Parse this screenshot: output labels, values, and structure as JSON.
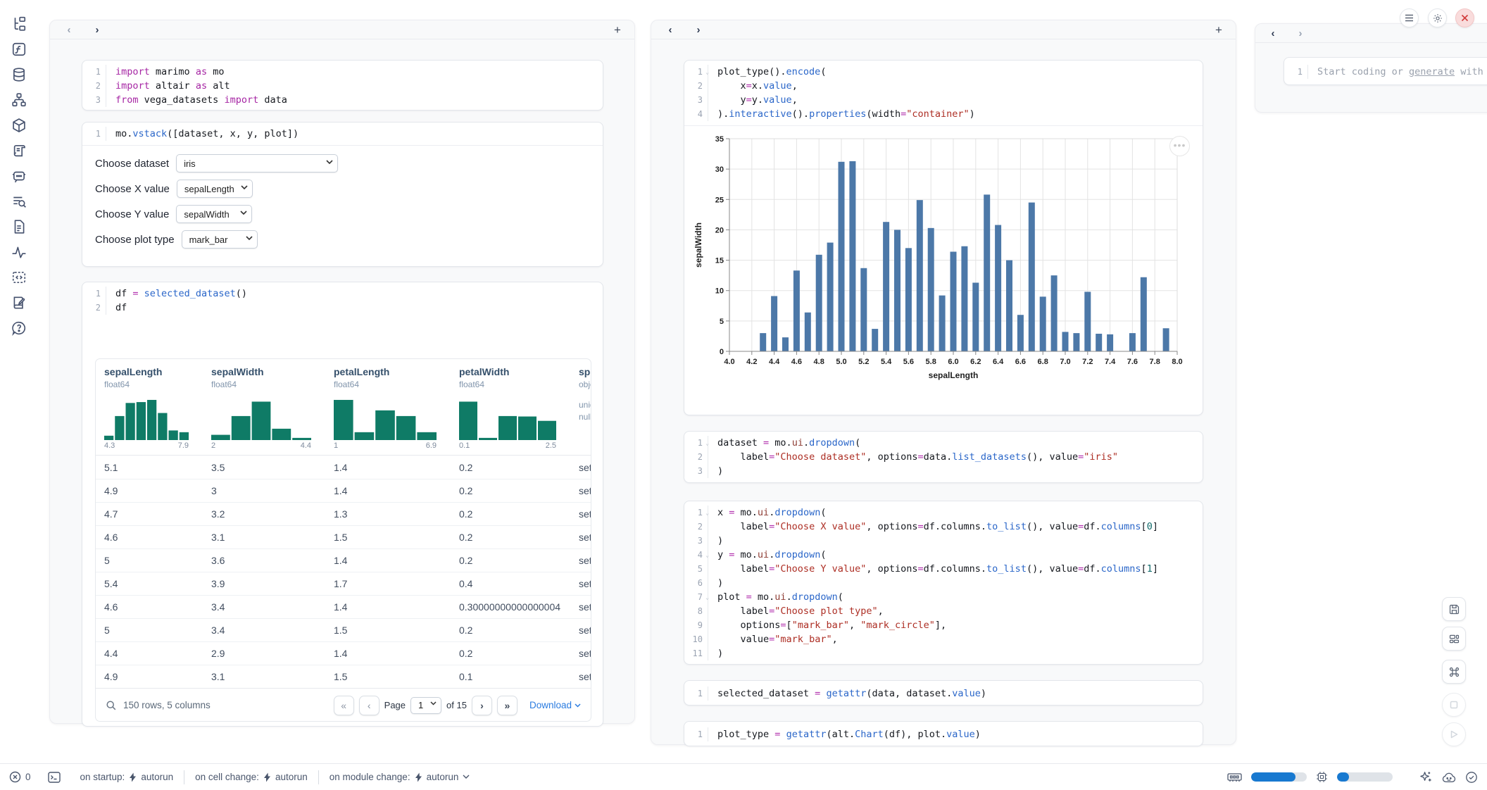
{
  "sidebar": {
    "icons": [
      "file-explorer-icon",
      "functions-icon",
      "datasets-icon",
      "dependency-graph-icon",
      "packages-icon",
      "logs-icon",
      "ai-chat-icon",
      "scratchpad-icon",
      "snippets-icon",
      "tracing-icon",
      "code-outline-icon",
      "documentation-icon",
      "help-icon"
    ]
  },
  "left_column": {
    "cells": {
      "imports": {
        "lines": [
          {
            "n": "1",
            "t": [
              [
                "k",
                "import"
              ],
              [
                "p",
                " marimo "
              ],
              [
                "k",
                "as"
              ],
              [
                "p",
                " mo"
              ]
            ]
          },
          {
            "n": "2",
            "t": [
              [
                "k",
                "import"
              ],
              [
                "p",
                " altair "
              ],
              [
                "k",
                "as"
              ],
              [
                "p",
                " alt"
              ]
            ]
          },
          {
            "n": "3",
            "t": [
              [
                "k",
                "from"
              ],
              [
                "p",
                " vega_datasets "
              ],
              [
                "k",
                "import"
              ],
              [
                "p",
                " data"
              ]
            ]
          }
        ]
      },
      "vstack": {
        "lines": [
          {
            "n": "1",
            "t": [
              [
                "p",
                "mo."
              ],
              [
                "f",
                "vstack"
              ],
              [
                "p",
                "([dataset, x, y, plot])"
              ]
            ]
          }
        ]
      },
      "df": {
        "lines": [
          {
            "n": "1",
            "t": [
              [
                "p",
                "df "
              ],
              [
                "o",
                "="
              ],
              [
                "p",
                " "
              ],
              [
                "f",
                "selected_dataset"
              ],
              [
                "p",
                "()"
              ]
            ]
          },
          {
            "n": "2",
            "t": [
              [
                "p",
                "df"
              ]
            ]
          }
        ]
      }
    },
    "controls": [
      {
        "label": "Choose dataset",
        "value": "iris"
      },
      {
        "label": "Choose X value",
        "value": "sepalLength"
      },
      {
        "label": "Choose Y value",
        "value": "sepalWidth"
      },
      {
        "label": "Choose plot type",
        "value": "mark_bar"
      }
    ]
  },
  "table": {
    "columns": [
      {
        "name": "sepalLength",
        "dtype": "float64",
        "min": "4.3",
        "max": "7.9",
        "hist": [
          0.1,
          0.55,
          0.85,
          0.87,
          0.92,
          0.62,
          0.22,
          0.18
        ]
      },
      {
        "name": "sepalWidth",
        "dtype": "float64",
        "min": "2",
        "max": "4.4",
        "hist": [
          0.12,
          0.55,
          0.88,
          0.26,
          0.05
        ]
      },
      {
        "name": "petalLength",
        "dtype": "float64",
        "min": "1",
        "max": "6.9",
        "hist": [
          0.92,
          0.18,
          0.68,
          0.55,
          0.18
        ]
      },
      {
        "name": "petalWidth",
        "dtype": "float64",
        "min": "0.1",
        "max": "2.5",
        "hist": [
          0.88,
          0.05,
          0.55,
          0.54,
          0.44
        ]
      },
      {
        "name": "speci",
        "dtype": "objec",
        "extra": [
          "uniqu",
          "nulls:"
        ]
      }
    ],
    "rows": [
      [
        "5.1",
        "3.5",
        "1.4",
        "0.2",
        "setos"
      ],
      [
        "4.9",
        "3",
        "1.4",
        "0.2",
        "setos"
      ],
      [
        "4.7",
        "3.2",
        "1.3",
        "0.2",
        "setos"
      ],
      [
        "4.6",
        "3.1",
        "1.5",
        "0.2",
        "setos"
      ],
      [
        "5",
        "3.6",
        "1.4",
        "0.2",
        "setos"
      ],
      [
        "5.4",
        "3.9",
        "1.7",
        "0.4",
        "setos"
      ],
      [
        "4.6",
        "3.4",
        "1.4",
        "0.30000000000000004",
        "setos"
      ],
      [
        "5",
        "3.4",
        "1.5",
        "0.2",
        "setos"
      ],
      [
        "4.4",
        "2.9",
        "1.4",
        "0.2",
        "setos"
      ],
      [
        "4.9",
        "3.1",
        "1.5",
        "0.1",
        "setos"
      ]
    ],
    "hist_color": "#0f7b66",
    "footer": {
      "summary": "150 rows, 5 columns",
      "page_label": "Page",
      "page_value": "1",
      "of_label": "of 15",
      "download_label": "Download"
    }
  },
  "middle_column": {
    "cells": {
      "plot": {
        "lines": [
          {
            "n": "1",
            "c": true,
            "t": [
              [
                "p",
                "plot_type"
              ],
              [
                "p",
                "()."
              ],
              [
                "f",
                "encode"
              ],
              [
                "p",
                "("
              ]
            ]
          },
          {
            "n": "2",
            "t": [
              [
                "p",
                "    x"
              ],
              [
                "o",
                "="
              ],
              [
                "p",
                "x."
              ],
              [
                "f",
                "value"
              ],
              [
                "p",
                ","
              ]
            ]
          },
          {
            "n": "3",
            "t": [
              [
                "p",
                "    y"
              ],
              [
                "o",
                "="
              ],
              [
                "p",
                "y."
              ],
              [
                "f",
                "value"
              ],
              [
                "p",
                ","
              ]
            ]
          },
          {
            "n": "4",
            "t": [
              [
                "p",
                ")."
              ],
              [
                "f",
                "interactive"
              ],
              [
                "p",
                "()."
              ],
              [
                "f",
                "properties"
              ],
              [
                "p",
                "(width"
              ],
              [
                "o",
                "="
              ],
              [
                "s",
                "\"container\""
              ],
              [
                "p",
                ")"
              ]
            ]
          }
        ]
      },
      "dataset": {
        "lines": [
          {
            "n": "1",
            "c": true,
            "t": [
              [
                "p",
                "dataset "
              ],
              [
                "o",
                "="
              ],
              [
                "p",
                " mo."
              ],
              [
                "u",
                "ui"
              ],
              [
                "p",
                "."
              ],
              [
                "f",
                "dropdown"
              ],
              [
                "p",
                "("
              ]
            ]
          },
          {
            "n": "2",
            "t": [
              [
                "p",
                "    label"
              ],
              [
                "o",
                "="
              ],
              [
                "s",
                "\"Choose dataset\""
              ],
              [
                "p",
                ", options"
              ],
              [
                "o",
                "="
              ],
              [
                "p",
                "data."
              ],
              [
                "f",
                "list_datasets"
              ],
              [
                "p",
                "(), value"
              ],
              [
                "o",
                "="
              ],
              [
                "s",
                "\"iris\""
              ]
            ]
          },
          {
            "n": "3",
            "t": [
              [
                "p",
                ")"
              ]
            ]
          }
        ]
      },
      "xyplot": {
        "lines": [
          {
            "n": "1",
            "c": true,
            "t": [
              [
                "p",
                "x "
              ],
              [
                "o",
                "="
              ],
              [
                "p",
                " mo."
              ],
              [
                "u",
                "ui"
              ],
              [
                "p",
                "."
              ],
              [
                "f",
                "dropdown"
              ],
              [
                "p",
                "("
              ]
            ]
          },
          {
            "n": "2",
            "t": [
              [
                "p",
                "    label"
              ],
              [
                "o",
                "="
              ],
              [
                "s",
                "\"Choose X value\""
              ],
              [
                "p",
                ", options"
              ],
              [
                "o",
                "="
              ],
              [
                "p",
                "df.columns."
              ],
              [
                "f",
                "to_list"
              ],
              [
                "p",
                "(), value"
              ],
              [
                "o",
                "="
              ],
              [
                "p",
                "df."
              ],
              [
                "f",
                "columns"
              ],
              [
                "p",
                "["
              ],
              [
                "n",
                "0"
              ],
              [
                "p",
                "]"
              ]
            ]
          },
          {
            "n": "3",
            "t": [
              [
                "p",
                ")"
              ]
            ]
          },
          {
            "n": "4",
            "c": true,
            "t": [
              [
                "p",
                "y "
              ],
              [
                "o",
                "="
              ],
              [
                "p",
                " mo."
              ],
              [
                "u",
                "ui"
              ],
              [
                "p",
                "."
              ],
              [
                "f",
                "dropdown"
              ],
              [
                "p",
                "("
              ]
            ]
          },
          {
            "n": "5",
            "t": [
              [
                "p",
                "    label"
              ],
              [
                "o",
                "="
              ],
              [
                "s",
                "\"Choose Y value\""
              ],
              [
                "p",
                ", options"
              ],
              [
                "o",
                "="
              ],
              [
                "p",
                "df.columns."
              ],
              [
                "f",
                "to_list"
              ],
              [
                "p",
                "(), value"
              ],
              [
                "o",
                "="
              ],
              [
                "p",
                "df."
              ],
              [
                "f",
                "columns"
              ],
              [
                "p",
                "["
              ],
              [
                "n",
                "1"
              ],
              [
                "p",
                "]"
              ]
            ]
          },
          {
            "n": "6",
            "t": [
              [
                "p",
                ")"
              ]
            ]
          },
          {
            "n": "7",
            "c": true,
            "t": [
              [
                "p",
                "plot "
              ],
              [
                "o",
                "="
              ],
              [
                "p",
                " mo."
              ],
              [
                "u",
                "ui"
              ],
              [
                "p",
                "."
              ],
              [
                "f",
                "dropdown"
              ],
              [
                "p",
                "("
              ]
            ]
          },
          {
            "n": "8",
            "t": [
              [
                "p",
                "    label"
              ],
              [
                "o",
                "="
              ],
              [
                "s",
                "\"Choose plot type\""
              ],
              [
                "p",
                ","
              ]
            ]
          },
          {
            "n": "9",
            "t": [
              [
                "p",
                "    options"
              ],
              [
                "o",
                "="
              ],
              [
                "p",
                "["
              ],
              [
                "s",
                "\"mark_bar\""
              ],
              [
                "p",
                ", "
              ],
              [
                "s",
                "\"mark_circle\""
              ],
              [
                "p",
                "],"
              ]
            ]
          },
          {
            "n": "10",
            "t": [
              [
                "p",
                "    value"
              ],
              [
                "o",
                "="
              ],
              [
                "s",
                "\"mark_bar\""
              ],
              [
                "p",
                ","
              ]
            ]
          },
          {
            "n": "11",
            "t": [
              [
                "p",
                ")"
              ]
            ]
          }
        ]
      },
      "selected": {
        "lines": [
          {
            "n": "1",
            "t": [
              [
                "p",
                "selected_dataset "
              ],
              [
                "o",
                "="
              ],
              [
                "p",
                " "
              ],
              [
                "f",
                "getattr"
              ],
              [
                "p",
                "(data, dataset."
              ],
              [
                "f",
                "value"
              ],
              [
                "p",
                ")"
              ]
            ]
          }
        ]
      },
      "plottype": {
        "lines": [
          {
            "n": "1",
            "t": [
              [
                "p",
                "plot_type "
              ],
              [
                "o",
                "="
              ],
              [
                "p",
                " "
              ],
              [
                "f",
                "getattr"
              ],
              [
                "p",
                "(alt."
              ],
              [
                "f",
                "Chart"
              ],
              [
                "p",
                "(df), plot."
              ],
              [
                "f",
                "value"
              ],
              [
                "p",
                ")"
              ]
            ]
          }
        ]
      }
    }
  },
  "chart_data": {
    "type": "bar",
    "x": [
      4.3,
      4.4,
      4.5,
      4.6,
      4.7,
      4.8,
      4.9,
      5.0,
      5.1,
      5.2,
      5.3,
      5.4,
      5.5,
      5.6,
      5.7,
      5.8,
      5.9,
      6.0,
      6.1,
      6.2,
      6.3,
      6.4,
      6.5,
      6.6,
      6.7,
      6.8,
      6.9,
      7.0,
      7.1,
      7.2,
      7.3,
      7.4,
      7.6,
      7.7,
      7.9
    ],
    "values": [
      3.0,
      9.1,
      2.3,
      13.3,
      6.4,
      15.9,
      17.9,
      31.2,
      31.3,
      13.7,
      3.7,
      21.3,
      20.0,
      17.0,
      24.9,
      20.3,
      9.2,
      16.4,
      17.3,
      11.3,
      25.8,
      20.8,
      15.0,
      6.0,
      24.5,
      9.0,
      12.5,
      3.2,
      3.0,
      9.8,
      2.9,
      2.8,
      3.0,
      12.2,
      3.8
    ],
    "xlabel": "sepalLength",
    "ylabel": "sepalWidth",
    "xlim": [
      4.0,
      8.0
    ],
    "ylim": [
      0,
      35
    ],
    "x_tick_step": 0.2,
    "y_tick_step": 5,
    "grid": true,
    "bar_color": "#4c78a8"
  },
  "right_panel": {
    "line_number": "1",
    "placeholder_prefix": "Start coding or ",
    "placeholder_link": "generate",
    "placeholder_suffix": " with"
  },
  "status_bar": {
    "error_count": "0",
    "run_modes": [
      {
        "label": "on startup:",
        "value": "autorun"
      },
      {
        "label": "on cell change:",
        "value": "autorun"
      },
      {
        "label": "on module change:",
        "value": "autorun"
      }
    ]
  },
  "colors": {
    "accent_blue": "#1879d0",
    "bar_blue": "#4c78a8",
    "hist_teal": "#0f7b66",
    "link_blue": "#2b7ce0",
    "danger_red": "#d23b3b"
  }
}
